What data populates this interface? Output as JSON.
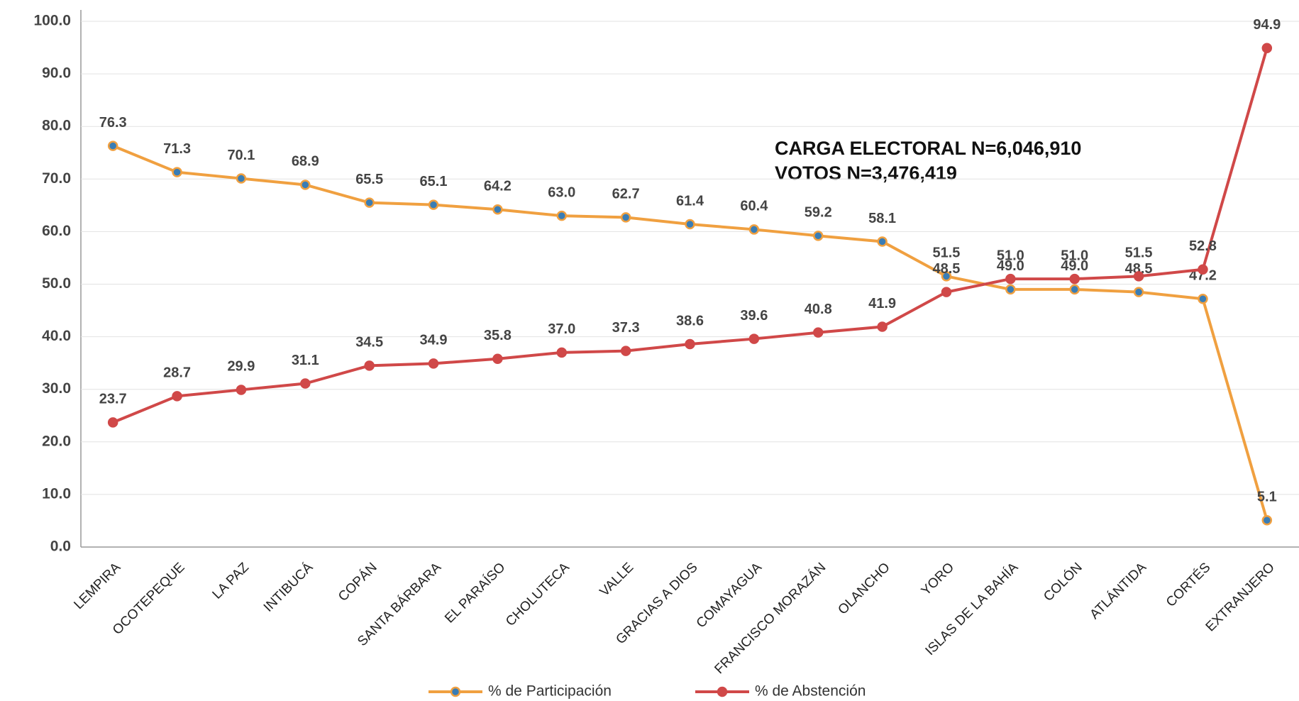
{
  "chart_data": {
    "type": "line",
    "annotations": [
      "CARGA ELECTORAL  N=6,046,910",
      "VOTOS N=3,476,419"
    ],
    "categories": [
      "LEMPIRA",
      "OCOTEPEQUE",
      "LA PAZ",
      "INTIBUCÁ",
      "COPÁN",
      "SANTA BÁRBARA",
      "EL PARAÍSO",
      "CHOLUTECA",
      "VALLE",
      "GRACIAS A DIOS",
      "COMAYAGUA",
      "FRANCISCO MORAZÁN",
      "OLANCHO",
      "YORO",
      "ISLAS DE LA BAHÍA",
      "COLÓN",
      "ATLÁNTIDA",
      "CORTÉS",
      "EXTRANJERO"
    ],
    "series": [
      {
        "name": "% de Participación",
        "color": "#f0a040",
        "values": [
          76.3,
          71.3,
          70.1,
          68.9,
          65.5,
          65.1,
          64.2,
          63.0,
          62.7,
          61.4,
          60.4,
          59.2,
          58.1,
          51.5,
          49.0,
          49.0,
          48.5,
          47.2,
          5.1
        ],
        "value_labels": [
          "76.3",
          "71.3",
          "70.1",
          "68.9",
          "65.5",
          "65.1",
          "64.2",
          "63.0",
          "62.7",
          "61.4",
          "60.4",
          "59.2",
          "58.1",
          "51.5",
          "49.0",
          "49.0",
          "48.5",
          "47.2",
          "5.1"
        ]
      },
      {
        "name": "% de Abstención",
        "color": "#d04848",
        "values": [
          23.7,
          28.7,
          29.9,
          31.1,
          34.5,
          34.9,
          35.8,
          37.0,
          37.3,
          38.6,
          39.6,
          40.8,
          41.9,
          48.5,
          51.0,
          51.0,
          51.5,
          52.8,
          94.9
        ],
        "value_labels": [
          "23.7",
          "28.7",
          "29.9",
          "31.1",
          "34.5",
          "34.9",
          "35.8",
          "37.0",
          "37.3",
          "38.6",
          "39.6",
          "40.8",
          "41.9",
          "48.5",
          "51.0",
          "51.0",
          "51.5",
          "52.8",
          "94.9"
        ]
      }
    ],
    "ylim": [
      0,
      100
    ],
    "yticks": [
      {
        "value": 0,
        "label": "0.0"
      },
      {
        "value": 10,
        "label": "10.0"
      },
      {
        "value": 20,
        "label": "20.0"
      },
      {
        "value": 30,
        "label": "30.0"
      },
      {
        "value": 40,
        "label": "40.0"
      },
      {
        "value": 50,
        "label": "50.0"
      },
      {
        "value": 60,
        "label": "60.0"
      },
      {
        "value": 70,
        "label": "70.0"
      },
      {
        "value": 80,
        "label": "80.0"
      },
      {
        "value": 90,
        "label": "90.0"
      },
      {
        "value": 100,
        "label": "100.0"
      }
    ],
    "grid": true
  }
}
